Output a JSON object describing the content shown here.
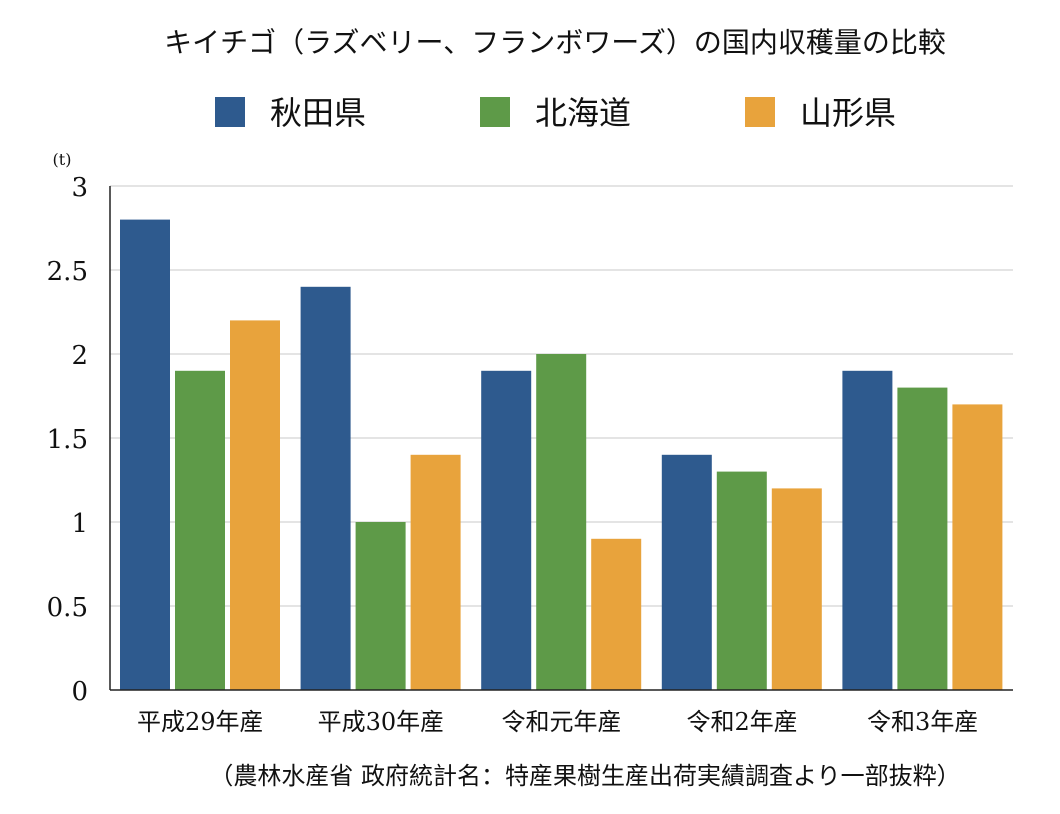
{
  "chart_data": {
    "type": "bar",
    "title": "キイチゴ（ラズベリー、フランボワーズ）の国内収穫量の比較",
    "ylabel": "(t)",
    "xlabel": "",
    "ylim": [
      0,
      3
    ],
    "yticks": [
      "0",
      "0.5",
      "1",
      "1.5",
      "2",
      "2.5",
      "3"
    ],
    "grid": true,
    "legend_position": "top",
    "categories": [
      "平成29年産",
      "平成30年産",
      "令和元年産",
      "令和2年産",
      "令和3年産"
    ],
    "series": [
      {
        "name": "秋田県",
        "color": "#2e5a8e",
        "values": [
          2.8,
          2.4,
          1.9,
          1.4,
          1.9
        ]
      },
      {
        "name": "北海道",
        "color": "#5e9a48",
        "values": [
          1.9,
          1.0,
          2.0,
          1.3,
          1.8
        ]
      },
      {
        "name": "山形県",
        "color": "#e8a33c",
        "values": [
          2.2,
          1.4,
          0.9,
          1.2,
          1.7
        ]
      }
    ],
    "source_note": "（農林水産省 政府統計名：特産果樹生産出荷実績調査より一部抜粋）"
  }
}
